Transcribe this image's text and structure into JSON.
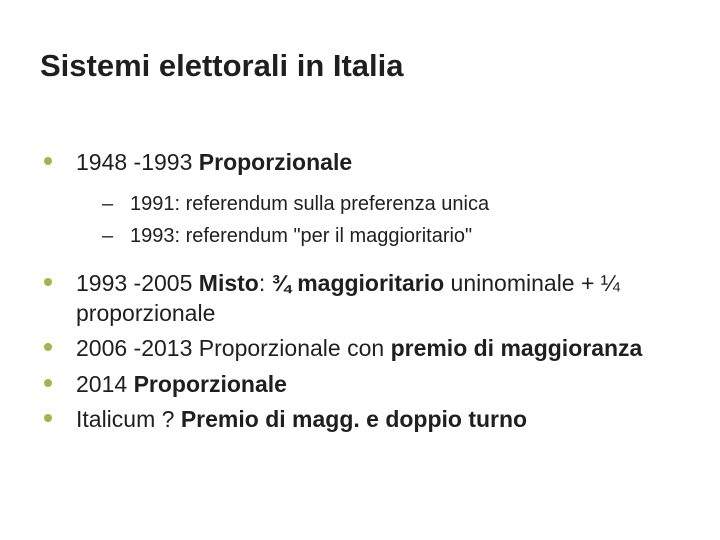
{
  "colors": {
    "background": "#ffffff",
    "text": "#1f1f1f",
    "bullet_accent": "#9db84a"
  },
  "title": "Sistemi elettorali in Italia",
  "items": [
    {
      "level": 1,
      "segments": [
        {
          "text": "1948 -1993 ",
          "bold": false
        },
        {
          "text": "Proporzionale",
          "bold": true
        }
      ]
    },
    {
      "level": 2,
      "segments": [
        {
          "text": "1991: referendum sulla preferenza unica",
          "bold": false
        }
      ]
    },
    {
      "level": 2,
      "segments": [
        {
          "text": "1993: referendum \"per il maggioritario\"",
          "bold": false
        }
      ]
    },
    {
      "level": 1,
      "segments": [
        {
          "text": "1993 -2005 ",
          "bold": false
        },
        {
          "text": "Misto",
          "bold": true
        },
        {
          "text": ": ",
          "bold": false
        },
        {
          "text": "¾ maggioritario",
          "bold": true
        },
        {
          "text": " uninominale + ¼ proporzionale",
          "bold": false
        }
      ]
    },
    {
      "level": 1,
      "segments": [
        {
          "text": "2006 -2013 Proporzionale con ",
          "bold": false
        },
        {
          "text": "premio di maggioranza",
          "bold": true
        }
      ]
    },
    {
      "level": 1,
      "segments": [
        {
          "text": "2014 ",
          "bold": false
        },
        {
          "text": "Proporzionale",
          "bold": true
        }
      ]
    },
    {
      "level": 1,
      "segments": [
        {
          "text": "Italicum ? ",
          "bold": false
        },
        {
          "text": "Premio di magg. e doppio turno",
          "bold": true
        }
      ]
    }
  ],
  "typography": {
    "title_fontsize": 31,
    "l1_fontsize": 23,
    "l2_fontsize": 20,
    "font_family": "Arial"
  }
}
